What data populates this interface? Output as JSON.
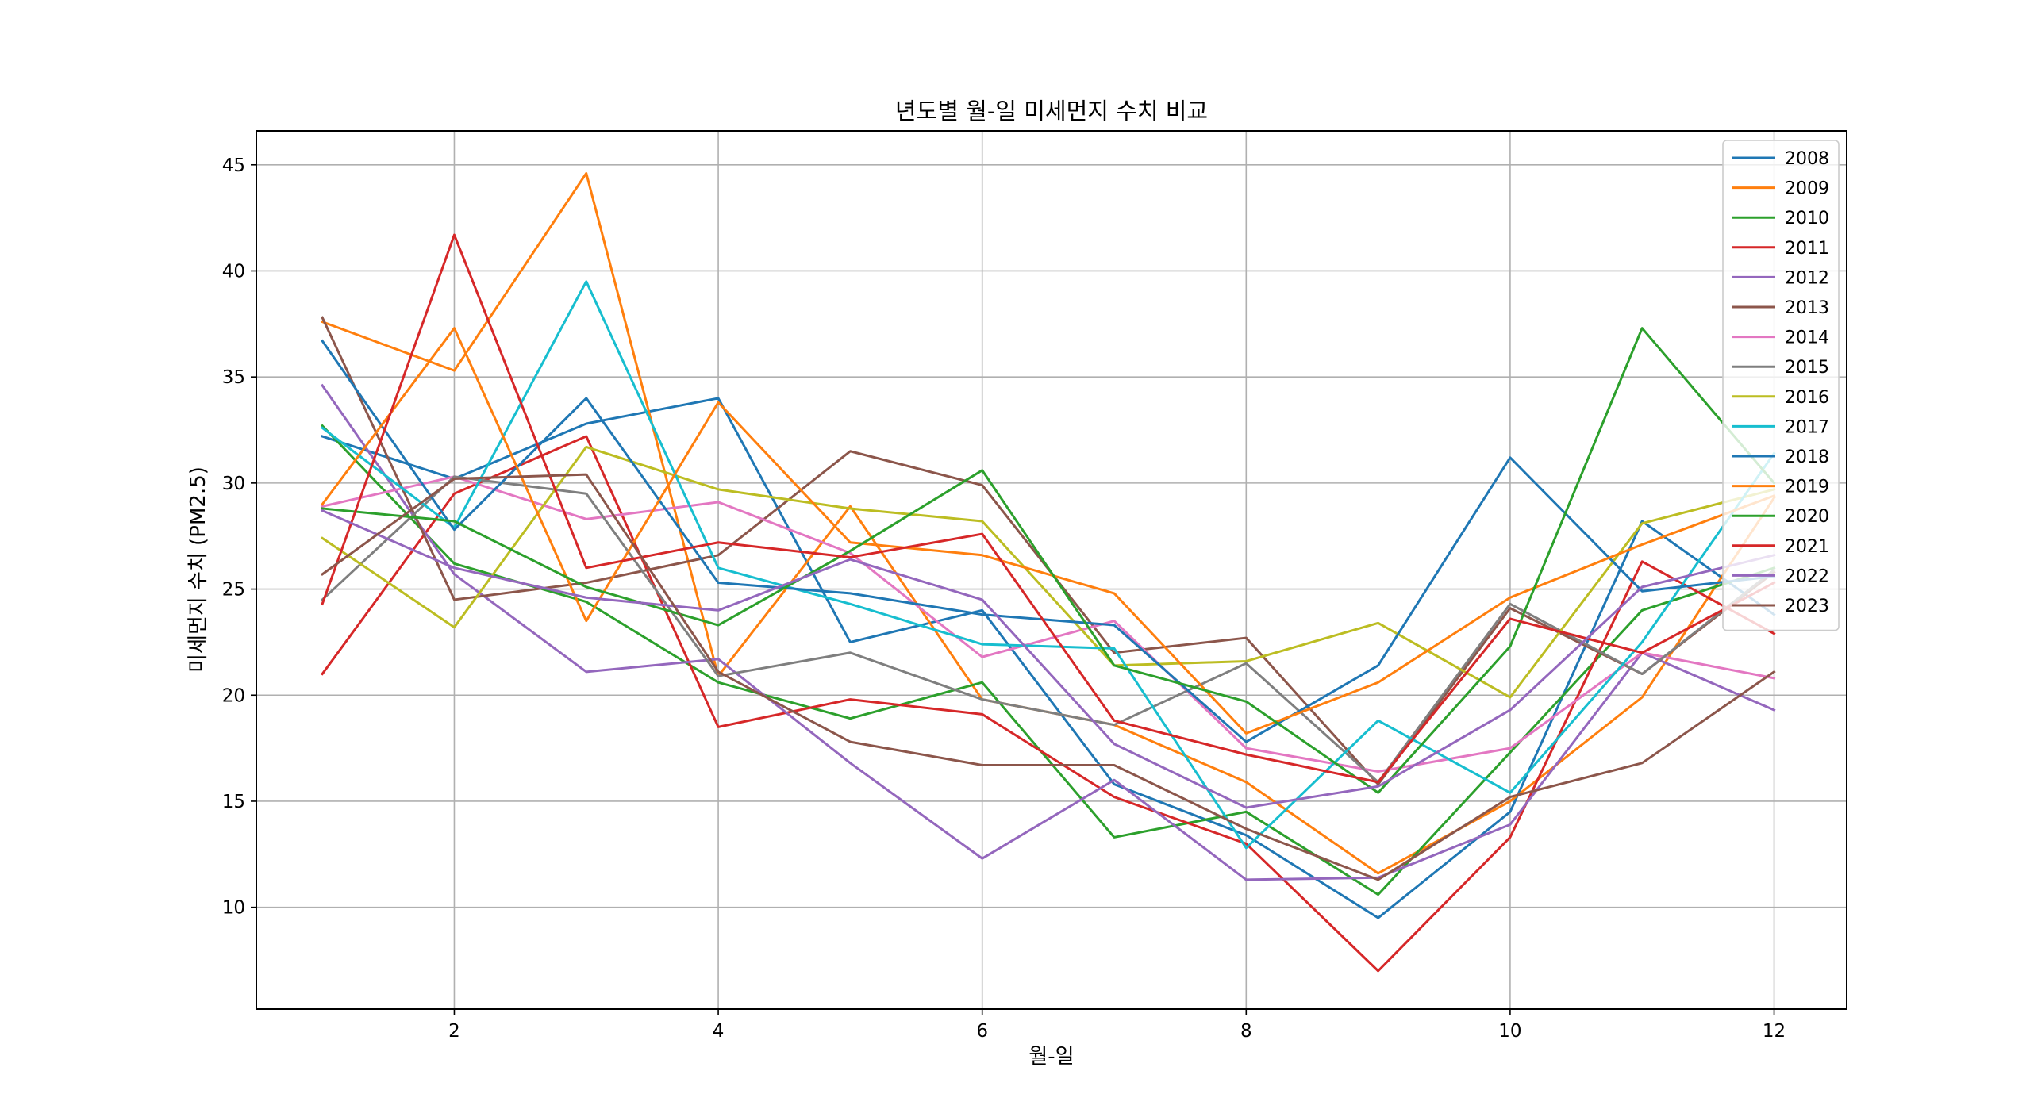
{
  "chart_data": {
    "type": "line",
    "title": "년도별 월-일 미세먼지 수치 비교",
    "xlabel": "월-일",
    "ylabel": "미세먼지 수치 (PM2.5)",
    "x": [
      1,
      2,
      3,
      4,
      5,
      6,
      7,
      8,
      9,
      10,
      11,
      12
    ],
    "xlim": [
      0.5,
      12.55
    ],
    "ylim": [
      5.2,
      46.6
    ],
    "xticks": [
      "2",
      "4",
      "6",
      "8",
      "10",
      "12"
    ],
    "yticks": [
      "10",
      "15",
      "20",
      "25",
      "30",
      "35",
      "40",
      "45"
    ],
    "grid": true,
    "legend_position": "top-right",
    "series": [
      {
        "name": "2008",
        "color": "#1f77b4",
        "values": [
          32.2,
          30.2,
          32.8,
          34.0,
          22.5,
          24.0,
          15.8,
          13.4,
          9.5,
          14.5,
          28.2,
          23.8
        ]
      },
      {
        "name": "2009",
        "color": "#ff7f0e",
        "values": [
          37.6,
          35.3,
          44.6,
          20.9,
          28.9,
          19.8,
          18.6,
          15.9,
          11.6,
          15.0,
          19.9,
          29.3
        ]
      },
      {
        "name": "2010",
        "color": "#2ca02c",
        "values": [
          32.7,
          26.2,
          24.4,
          20.6,
          18.9,
          20.6,
          13.3,
          14.5,
          10.6,
          17.3,
          24.0,
          26.0
        ]
      },
      {
        "name": "2011",
        "color": "#d62728",
        "values": [
          21.0,
          29.5,
          32.2,
          18.5,
          19.8,
          19.1,
          15.2,
          13.0,
          7.0,
          13.3,
          26.3,
          22.9
        ]
      },
      {
        "name": "2012",
        "color": "#9467bd",
        "values": [
          34.6,
          25.7,
          21.1,
          21.7,
          16.8,
          12.3,
          16.0,
          11.3,
          11.4,
          13.9,
          22.0,
          19.3
        ]
      },
      {
        "name": "2013",
        "color": "#8c564b",
        "values": [
          37.8,
          24.5,
          25.3,
          26.6,
          31.5,
          29.9,
          22.0,
          22.7,
          15.8,
          24.1,
          21.0,
          25.8
        ]
      },
      {
        "name": "2014",
        "color": "#e377c2",
        "values": [
          28.9,
          30.3,
          28.3,
          29.1,
          26.7,
          21.8,
          23.5,
          17.5,
          16.4,
          17.5,
          22.0,
          20.8
        ]
      },
      {
        "name": "2015",
        "color": "#7f7f7f",
        "values": [
          24.5,
          30.3,
          29.5,
          20.9,
          22.0,
          19.8,
          18.6,
          21.5,
          15.9,
          24.3,
          21.0,
          25.9
        ]
      },
      {
        "name": "2016",
        "color": "#bcbd22",
        "values": [
          27.4,
          23.2,
          31.7,
          29.7,
          28.8,
          28.2,
          21.4,
          21.6,
          23.4,
          19.9,
          28.1,
          29.7
        ]
      },
      {
        "name": "2017",
        "color": "#17becf",
        "values": [
          32.6,
          27.9,
          39.5,
          26.0,
          24.3,
          22.4,
          22.2,
          12.8,
          18.8,
          15.4,
          22.5,
          31.4
        ]
      },
      {
        "name": "2018",
        "color": "#1f77b4",
        "values": [
          36.7,
          27.8,
          34.0,
          25.3,
          24.8,
          23.8,
          23.3,
          17.8,
          21.4,
          31.2,
          24.9,
          25.6
        ]
      },
      {
        "name": "2019",
        "color": "#ff7f0e",
        "values": [
          29.0,
          37.3,
          23.5,
          33.8,
          27.2,
          26.6,
          24.8,
          18.2,
          20.6,
          24.6,
          27.1,
          29.4
        ]
      },
      {
        "name": "2020",
        "color": "#2ca02c",
        "values": [
          28.8,
          28.2,
          25.1,
          23.3,
          26.8,
          30.6,
          21.4,
          19.7,
          15.4,
          22.3,
          37.3,
          30.0
        ]
      },
      {
        "name": "2021",
        "color": "#d62728",
        "values": [
          24.3,
          41.7,
          26.0,
          27.2,
          26.5,
          27.6,
          18.8,
          17.2,
          15.9,
          23.6,
          22.0,
          25.3
        ]
      },
      {
        "name": "2022",
        "color": "#9467bd",
        "values": [
          28.7,
          26.0,
          24.6,
          24.0,
          26.4,
          24.5,
          17.7,
          14.7,
          15.7,
          19.3,
          25.1,
          26.6
        ]
      },
      {
        "name": "2023",
        "color": "#8c564b",
        "values": [
          25.7,
          30.2,
          30.4,
          21.1,
          17.8,
          16.7,
          16.7,
          13.7,
          11.3,
          15.2,
          16.8,
          21.1
        ]
      }
    ]
  }
}
